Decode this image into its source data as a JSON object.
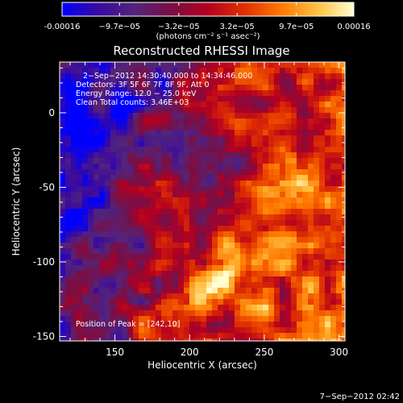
{
  "chart_data": {
    "type": "heatmap",
    "title": "Reconstructed RHESSI Image",
    "xlabel": "Heliocentric X (arcsec)",
    "ylabel": "Heliocentric Y (arcsec)",
    "xlim": [
      113,
      304
    ],
    "ylim": [
      -153,
      34
    ],
    "x_ticks": [
      150,
      200,
      250,
      300
    ],
    "y_ticks": [
      0,
      -50,
      -100,
      -150
    ],
    "colorbar": {
      "min": -0.00016,
      "max": 0.00016,
      "tick_values": [
        -0.00016,
        -9.7e-05,
        -3.2e-05,
        3.2e-05,
        9.7e-05,
        0.00016
      ],
      "tick_labels": [
        "-0.00016",
        "−9.7e−05",
        "−3.2e−05",
        "3.2e−05",
        "9.7e−05",
        "0.00016"
      ],
      "unit_label": "(photons cm⁻² s⁻¹ asec⁻²)",
      "colors": [
        "#0000ff",
        "#3a0aa0",
        "#53247a",
        "#7a0e44",
        "#b40020",
        "#e03000",
        "#ff7800",
        "#ffc040",
        "#ffffd0"
      ]
    },
    "annotations": [
      "2−Sep−2012 14:30:40.000 to 14:34:46.000",
      "Detectors: 3F 5F 6F 7F 8F 9F, Att 0",
      "Energy Range: 12.0 − 25.0 keV",
      "Clean      Total counts: 3.46E+03"
    ],
    "peak_label": "Position of Peak = [242,10]",
    "peak_position": [
      242,
      10
    ],
    "total_counts": 3460
  },
  "footer": {
    "date": "7−Sep−2012 02:42"
  }
}
